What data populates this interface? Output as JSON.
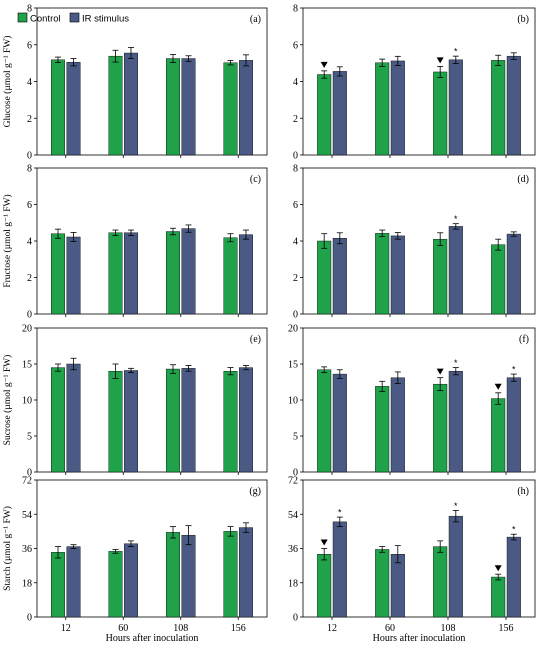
{
  "colors": {
    "control": "#1fa24a",
    "ir": "#4a5a85",
    "axis": "#000000"
  },
  "legend": {
    "control": "Control",
    "ir": "IR stimulus"
  },
  "xlabel": "Hours after inoculation",
  "categories": [
    "12",
    "60",
    "108",
    "156"
  ],
  "chart_data": [
    {
      "id": "a",
      "panel_label": "(a)",
      "type": "bar",
      "ylabel": "Glucose (µmol g⁻¹ FW)",
      "ylim": [
        0,
        8
      ],
      "yticks": [
        0,
        2,
        4,
        6,
        8
      ],
      "categories": [
        "12",
        "60",
        "108",
        "156"
      ],
      "series": [
        {
          "name": "Control",
          "values": [
            5.18,
            5.38,
            5.25,
            5.02
          ],
          "errors": [
            0.15,
            0.32,
            0.22,
            0.12
          ]
        },
        {
          "name": "IR stimulus",
          "values": [
            5.05,
            5.55,
            5.25,
            5.15
          ],
          "errors": [
            0.2,
            0.3,
            0.15,
            0.3
          ]
        }
      ],
      "triangles": [],
      "stars": []
    },
    {
      "id": "b",
      "panel_label": "(b)",
      "type": "bar",
      "ylabel": "",
      "ylim": [
        0,
        8
      ],
      "yticks": [
        0,
        2,
        4,
        6,
        8
      ],
      "categories": [
        "12",
        "60",
        "108",
        "156"
      ],
      "series": [
        {
          "name": "Control",
          "values": [
            4.38,
            5.02,
            4.52,
            5.15
          ],
          "errors": [
            0.2,
            0.2,
            0.3,
            0.28
          ]
        },
        {
          "name": "IR stimulus",
          "values": [
            4.55,
            5.12,
            5.18,
            5.38
          ],
          "errors": [
            0.25,
            0.25,
            0.2,
            0.18
          ]
        }
      ],
      "triangles": [
        0,
        2
      ],
      "stars": [
        2
      ]
    },
    {
      "id": "c",
      "panel_label": "(c)",
      "type": "bar",
      "ylabel": "Fructose (µmol g⁻¹ FW)",
      "ylim": [
        0,
        8
      ],
      "yticks": [
        0,
        2,
        4,
        6,
        8
      ],
      "categories": [
        "12",
        "60",
        "108",
        "156"
      ],
      "series": [
        {
          "name": "Control",
          "values": [
            4.4,
            4.45,
            4.52,
            4.18
          ],
          "errors": [
            0.25,
            0.15,
            0.18,
            0.22
          ]
        },
        {
          "name": "IR stimulus",
          "values": [
            4.22,
            4.45,
            4.68,
            4.35
          ],
          "errors": [
            0.25,
            0.15,
            0.2,
            0.25
          ]
        }
      ],
      "triangles": [],
      "stars": []
    },
    {
      "id": "d",
      "panel_label": "(d)",
      "type": "bar",
      "ylabel": "",
      "ylim": [
        0,
        8
      ],
      "yticks": [
        0,
        2,
        4,
        6,
        8
      ],
      "categories": [
        "12",
        "60",
        "108",
        "156"
      ],
      "series": [
        {
          "name": "Control",
          "values": [
            4.0,
            4.42,
            4.1,
            3.8
          ],
          "errors": [
            0.4,
            0.18,
            0.35,
            0.3
          ]
        },
        {
          "name": "IR stimulus",
          "values": [
            4.15,
            4.28,
            4.8,
            4.38
          ],
          "errors": [
            0.3,
            0.18,
            0.15,
            0.12
          ]
        }
      ],
      "triangles": [],
      "stars": [
        2
      ]
    },
    {
      "id": "e",
      "panel_label": "(e)",
      "type": "bar",
      "ylabel": "Sucrose (µmol g⁻¹ FW)",
      "ylim": [
        0,
        20
      ],
      "yticks": [
        0,
        5,
        10,
        15,
        20
      ],
      "categories": [
        "12",
        "60",
        "108",
        "156"
      ],
      "series": [
        {
          "name": "Control",
          "values": [
            14.5,
            14.0,
            14.3,
            14.0
          ],
          "errors": [
            0.5,
            1.0,
            0.6,
            0.5
          ]
        },
        {
          "name": "IR stimulus",
          "values": [
            15.0,
            14.1,
            14.4,
            14.5
          ],
          "errors": [
            0.8,
            0.3,
            0.4,
            0.3
          ]
        }
      ],
      "triangles": [],
      "stars": []
    },
    {
      "id": "f",
      "panel_label": "(f)",
      "type": "bar",
      "ylabel": "",
      "ylim": [
        0,
        20
      ],
      "yticks": [
        0,
        5,
        10,
        15,
        20
      ],
      "categories": [
        "12",
        "60",
        "108",
        "156"
      ],
      "series": [
        {
          "name": "Control",
          "values": [
            14.2,
            11.9,
            12.2,
            10.2
          ],
          "errors": [
            0.4,
            0.7,
            0.9,
            0.8
          ]
        },
        {
          "name": "IR stimulus",
          "values": [
            13.6,
            13.1,
            14.0,
            13.1
          ],
          "errors": [
            0.6,
            0.8,
            0.5,
            0.5
          ]
        }
      ],
      "triangles": [
        2,
        3
      ],
      "stars": [
        2,
        3
      ]
    },
    {
      "id": "g",
      "panel_label": "(g)",
      "type": "bar",
      "ylabel": "Starch (µmol g⁻¹ FW)",
      "ylim": [
        0,
        72
      ],
      "yticks": [
        0,
        18,
        36,
        54,
        72
      ],
      "categories": [
        "12",
        "60",
        "108",
        "156"
      ],
      "series": [
        {
          "name": "Control",
          "values": [
            34.0,
            34.5,
            44.5,
            45.0
          ],
          "errors": [
            3.0,
            1.0,
            3.0,
            2.5
          ]
        },
        {
          "name": "IR stimulus",
          "values": [
            37.0,
            38.5,
            43.0,
            47.0
          ],
          "errors": [
            1.0,
            1.5,
            5.0,
            2.5
          ]
        }
      ],
      "triangles": [],
      "stars": []
    },
    {
      "id": "h",
      "panel_label": "(h)",
      "type": "bar",
      "ylabel": "",
      "ylim": [
        0,
        72
      ],
      "yticks": [
        0,
        18,
        36,
        54,
        72
      ],
      "categories": [
        "12",
        "60",
        "108",
        "156"
      ],
      "series": [
        {
          "name": "Control",
          "values": [
            33.0,
            35.5,
            37.0,
            21.0
          ],
          "errors": [
            3.0,
            1.5,
            3.0,
            1.5
          ]
        },
        {
          "name": "IR stimulus",
          "values": [
            50.0,
            33.0,
            53.0,
            42.0
          ],
          "errors": [
            2.5,
            4.5,
            3.0,
            1.5
          ]
        }
      ],
      "triangles": [
        0,
        3
      ],
      "stars": [
        0,
        2,
        3
      ]
    }
  ]
}
